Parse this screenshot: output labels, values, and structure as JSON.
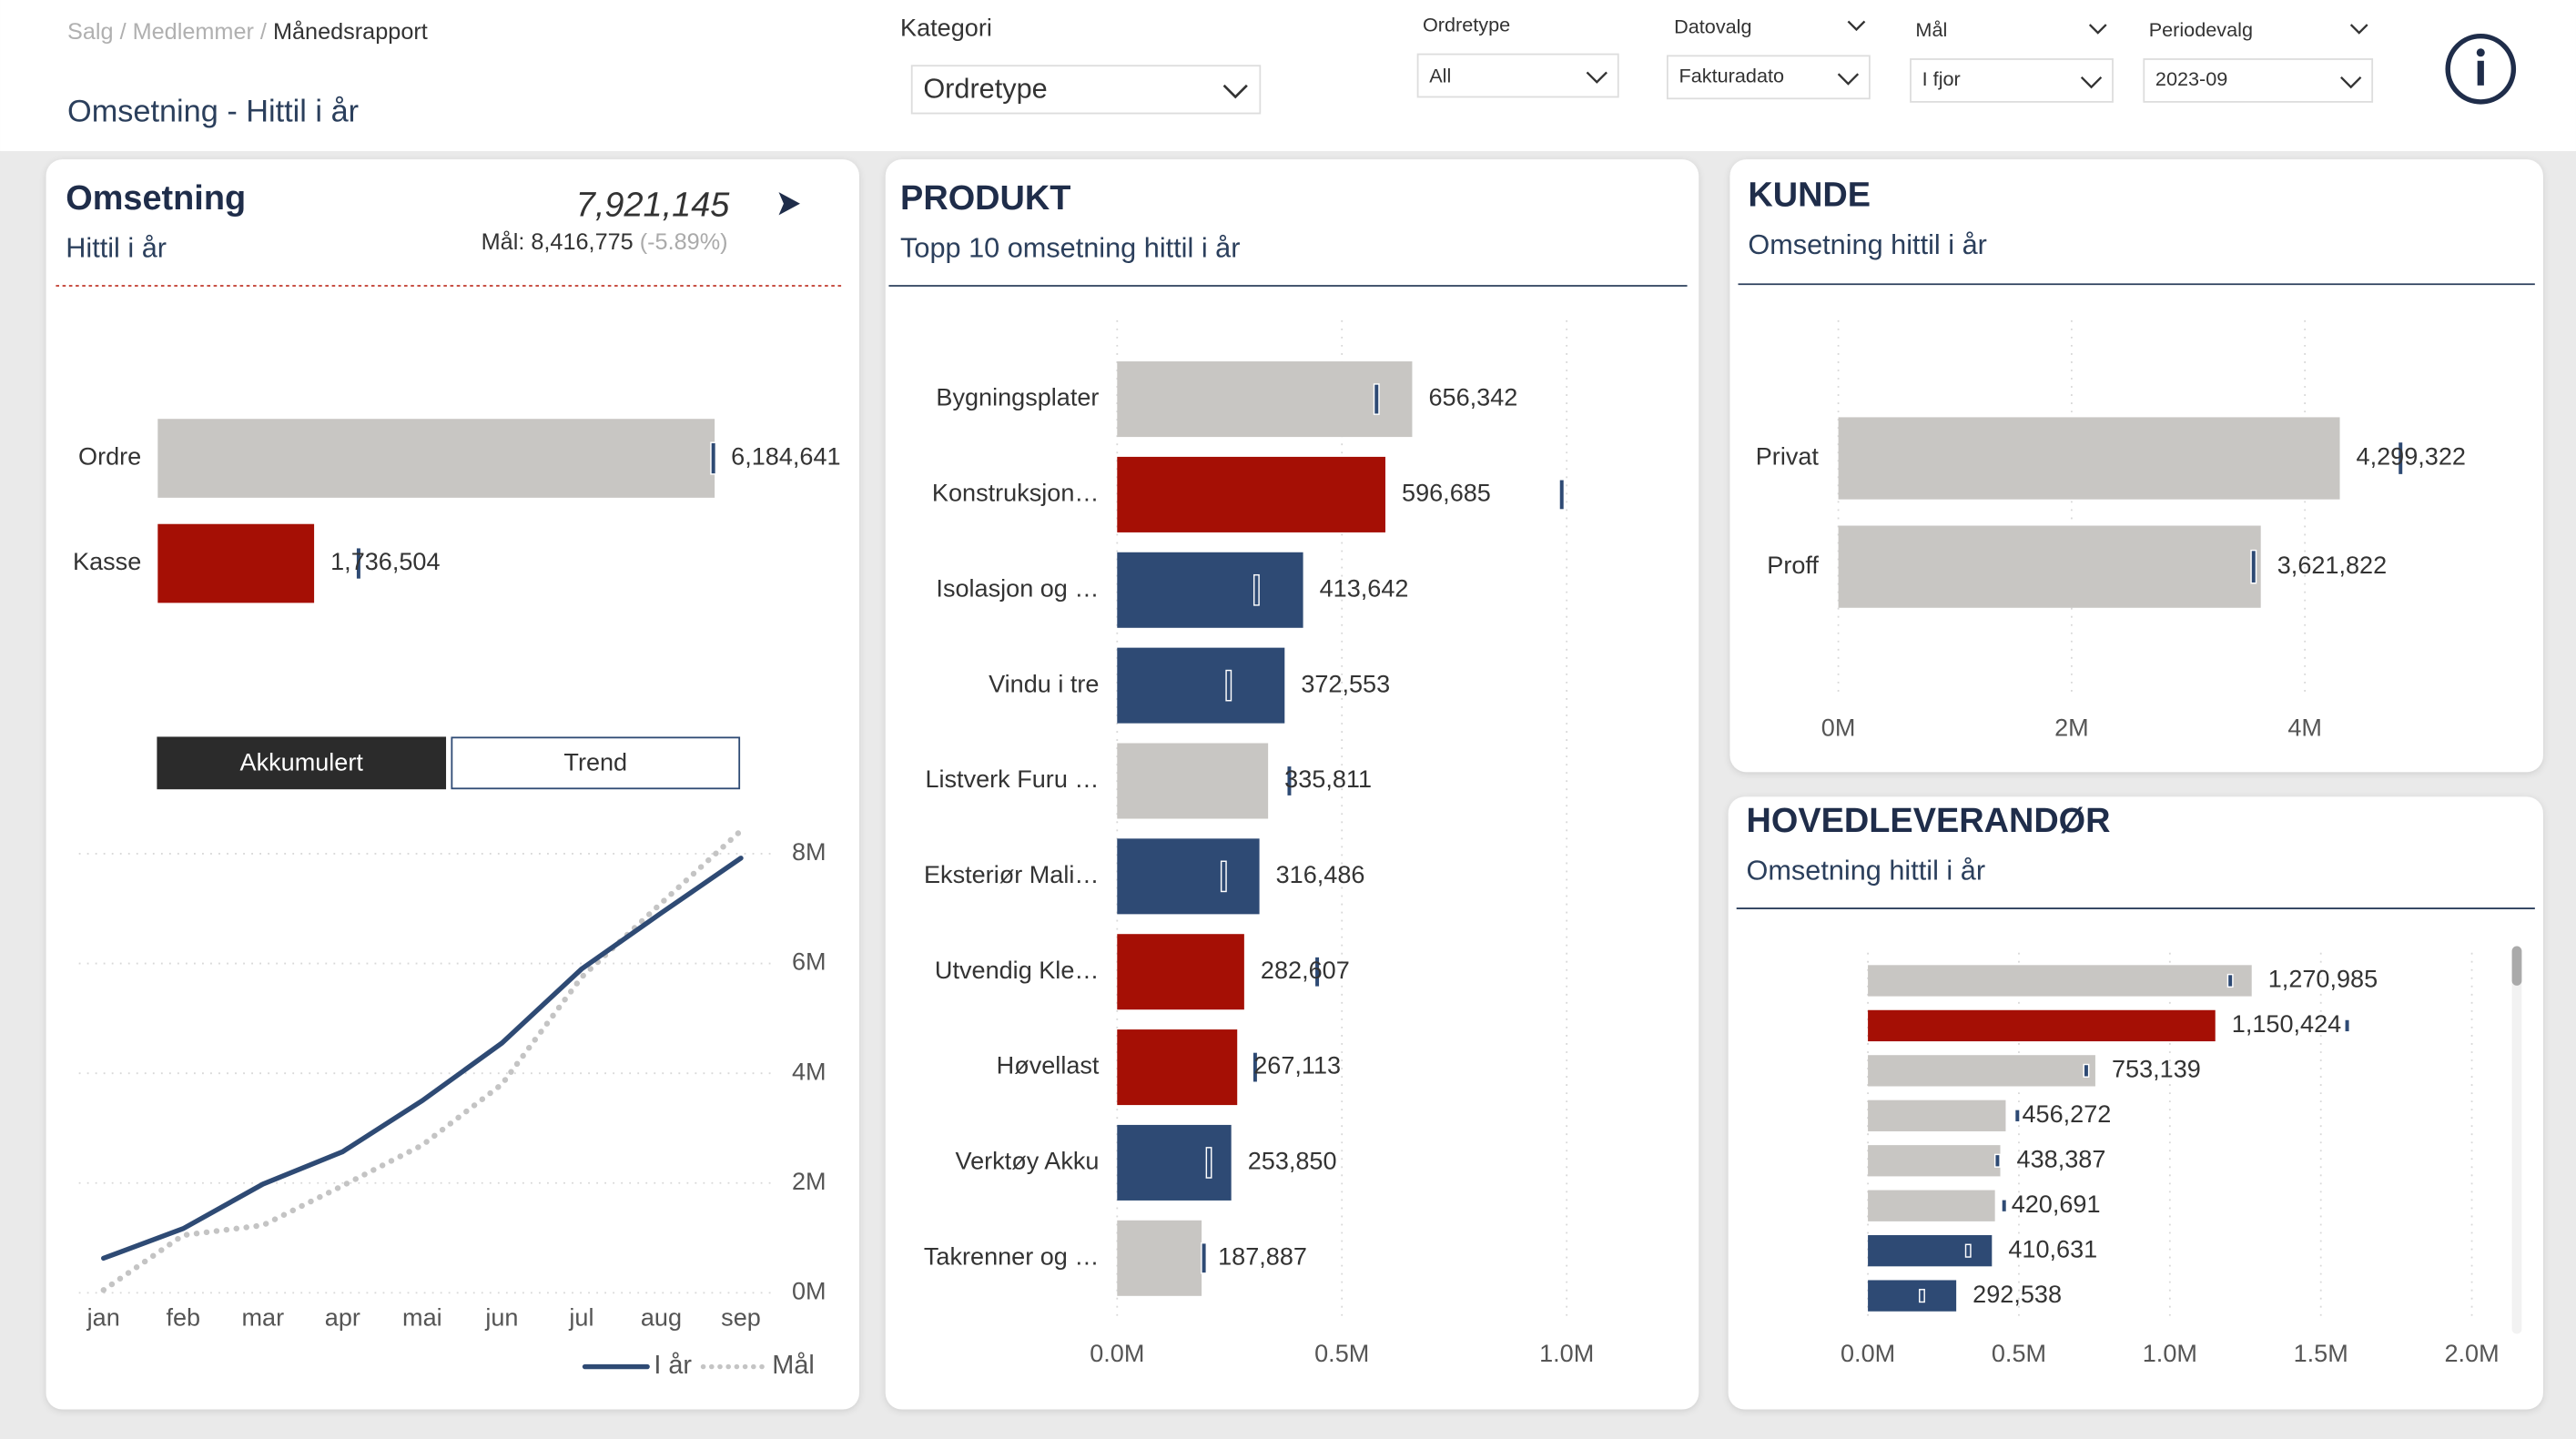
{
  "header": {
    "breadcrumb": "Salg / Medlemmer /",
    "current": "Månedsrapport",
    "page_title": "Omsetning - Hittil i år"
  },
  "filters": [
    {
      "label": "Kategori",
      "value": "Ordretype"
    },
    {
      "label": "Ordretype",
      "value": "All"
    },
    {
      "label": "Datovalg",
      "value": "Fakturadato"
    },
    {
      "label": "Mål",
      "value": "I fjor"
    },
    {
      "label": "Periodevalg",
      "value": "2023-09"
    }
  ],
  "kpi": {
    "value": "7,921,145",
    "target": "Mål: 8,416,775",
    "deviation": "(-5.89%)"
  },
  "chart_data": [
    {
      "type": "bar",
      "orientation": "horizontal",
      "title": "Omsetning",
      "subtitle": "Hittil i år",
      "categories": [
        "Ordre",
        "Kasse"
      ],
      "values": [
        6184641,
        1736504
      ],
      "value_labels": [
        "6,184,641",
        "1,736,504"
      ],
      "colors": [
        "#c8c6c3",
        "#a50f05"
      ],
      "targets": [
        6170000,
        2230000
      ]
    },
    {
      "type": "line",
      "buttons": [
        "Akkumulert",
        "Trend"
      ],
      "categories": [
        "jan",
        "feb",
        "mar",
        "apr",
        "mai",
        "jun",
        "jul",
        "aug",
        "sep"
      ],
      "series": [
        {
          "name": "I år",
          "color": "#2e4a74",
          "values": [
            0.63,
            1.17,
            1.98,
            2.57,
            3.5,
            4.55,
            5.9,
            6.92,
            7.92
          ]
        },
        {
          "name": "Mål",
          "color": "#c4c4c4",
          "values": [
            0.05,
            1.05,
            1.23,
            1.95,
            2.69,
            3.8,
            5.75,
            7.1,
            8.42
          ]
        }
      ],
      "ylim": [
        0,
        8.5
      ],
      "yticks": [
        {
          "value": 0,
          "label": "0M"
        },
        {
          "value": 2,
          "label": "2M"
        },
        {
          "value": 4,
          "label": "4M"
        },
        {
          "value": 6,
          "label": "6M"
        },
        {
          "value": 8,
          "label": "8M"
        }
      ],
      "grid": true,
      "legend": "bottom-right"
    },
    {
      "type": "bar",
      "orientation": "horizontal",
      "title": "PRODUKT",
      "subtitle": "Topp 10 omsetning hittil i år",
      "categories": [
        "Bygningsplater",
        "Konstruksjon…",
        "Isolasjon og …",
        "Vindu i tre",
        "Listverk Furu …",
        "Eksteriør Mali…",
        "Utvendig Kle…",
        "Høvellast",
        "Verktøy Akku",
        "Takrenner og …"
      ],
      "values": [
        656342,
        596685,
        413642,
        372553,
        335811,
        316486,
        282607,
        267113,
        253850,
        187887
      ],
      "value_labels": [
        "656,342",
        "596,685",
        "413,642",
        "372,553",
        "335,811",
        "316,486",
        "282,607",
        "267,113",
        "253,850",
        "187,887"
      ],
      "colors": [
        "#c8c6c3",
        "#a50f05",
        "#2e4a74",
        "#2e4a74",
        "#c8c6c3",
        "#2e4a74",
        "#a50f05",
        "#a50f05",
        "#2e4a74",
        "#c8c6c3"
      ],
      "targets": [
        577000,
        989000,
        310000,
        248000,
        383000,
        237000,
        445000,
        307000,
        204000,
        193000
      ],
      "xlim": [
        0,
        1100000
      ],
      "xticks": [
        {
          "value": 0,
          "label": "0.0M"
        },
        {
          "value": 500000,
          "label": "0.5M"
        },
        {
          "value": 1000000,
          "label": "1.0M"
        }
      ],
      "grid": true
    },
    {
      "type": "bar",
      "orientation": "horizontal",
      "title": "KUNDE",
      "subtitle": "Omsetning hittil i år",
      "categories": [
        "Privat",
        "Proff"
      ],
      "values": [
        4299322,
        3621822
      ],
      "value_labels": [
        "4,299,322",
        "3,621,822"
      ],
      "colors": [
        "#c8c6c3",
        "#c8c6c3"
      ],
      "targets": [
        4820000,
        3560000
      ],
      "xlim": [
        0,
        5000000
      ],
      "xticks": [
        {
          "value": 0,
          "label": "0M"
        },
        {
          "value": 2000000,
          "label": "2M"
        },
        {
          "value": 4000000,
          "label": "4M"
        }
      ],
      "grid": true
    },
    {
      "type": "bar",
      "orientation": "horizontal",
      "title": "HOVEDLEVERANDØR",
      "subtitle": "Omsetning hittil i år",
      "categories": [
        null,
        null,
        null,
        null,
        null,
        null,
        null,
        null
      ],
      "values": [
        1270985,
        1150424,
        753139,
        456272,
        438387,
        420691,
        410631,
        292538
      ],
      "value_labels": [
        "1,270,985",
        "1,150,424",
        "753,139",
        "456,272",
        "438,387",
        "420,691",
        "410,631",
        "292,538"
      ],
      "colors": [
        "#c8c6c3",
        "#a50f05",
        "#c8c6c3",
        "#c8c6c3",
        "#c8c6c3",
        "#c8c6c3",
        "#2e4a74",
        "#2e4a74"
      ],
      "targets": [
        1200000,
        1587000,
        723000,
        495000,
        429000,
        451000,
        332000,
        179000
      ],
      "xlim": [
        0,
        2100000
      ],
      "xticks": [
        {
          "value": 0,
          "label": "0.0M"
        },
        {
          "value": 500000,
          "label": "0.5M"
        },
        {
          "value": 1000000,
          "label": "1.0M"
        },
        {
          "value": 1500000,
          "label": "1.5M"
        },
        {
          "value": 2000000,
          "label": "2.0M"
        }
      ],
      "grid": true
    }
  ]
}
